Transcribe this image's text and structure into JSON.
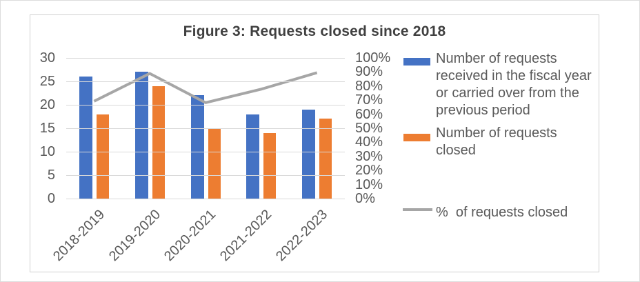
{
  "chart_data": {
    "type": "combo-bar-line",
    "title": "Figure 3: Requests closed since 2018",
    "categories": [
      "2018-2019",
      "2019-2020",
      "2020-2021",
      "2021-2022",
      "2022-2023"
    ],
    "series": [
      {
        "name": "Number of requests received in the fiscal year or carried over from the previous period",
        "legend_lines": [
          "Number of requests",
          "received in the fiscal year",
          "or carried over from the",
          "previous period"
        ],
        "chart_type": "bar",
        "color": "#4472C4",
        "axis": "left",
        "values": [
          26,
          27,
          22,
          18,
          19
        ]
      },
      {
        "name": "Number of requests closed",
        "legend_lines": [
          "Number of requests",
          "closed"
        ],
        "chart_type": "bar",
        "color": "#ED7D31",
        "axis": "left",
        "values": [
          18,
          24,
          15,
          14,
          17
        ]
      },
      {
        "name": "%  of requests closed",
        "legend_lines": [
          "%  of requests closed"
        ],
        "chart_type": "line",
        "color": "#A6A6A6",
        "axis": "right",
        "values": [
          69.2,
          88.9,
          68.2,
          77.8,
          89.5
        ]
      }
    ],
    "left_axis": {
      "min": 0,
      "max": 30,
      "ticks": [
        "30",
        "25",
        "20",
        "15",
        "10",
        "5",
        "0"
      ]
    },
    "right_axis": {
      "min": 0,
      "max": 100,
      "ticks": [
        "100%",
        "90%",
        "80%",
        "70%",
        "60%",
        "50%",
        "40%",
        "30%",
        "20%",
        "10%",
        "0%"
      ]
    },
    "grid": true,
    "legend_position": "right"
  },
  "style": {
    "bar_blue": "#4472C4",
    "bar_orange": "#ED7D31",
    "line_gray": "#A6A6A6",
    "grid_color": "#D9D9D9",
    "axis_text_color": "#595959",
    "title_color": "#404040",
    "frame_border_color": "#D0D0D0"
  }
}
